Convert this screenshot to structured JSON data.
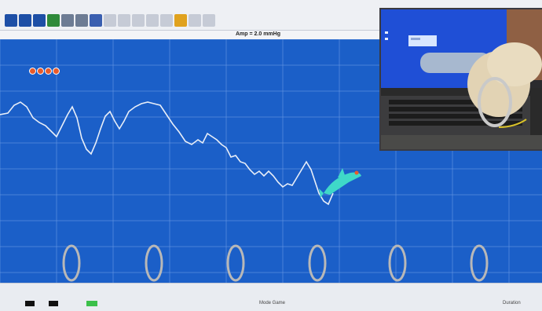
{
  "toolbar": {
    "buttons": [
      {
        "name": "pause-icon",
        "color": "#1d4fa6"
      },
      {
        "name": "split-view-icon",
        "color": "#1d4fa6"
      },
      {
        "name": "compare-icon",
        "color": "#1d4fa6"
      },
      {
        "name": "graph-icon",
        "color": "#2f8a3a"
      },
      {
        "name": "tools-icon",
        "color": "#6d7c94"
      },
      {
        "name": "people-icon",
        "color": "#6d7c94"
      },
      {
        "name": "save-icon",
        "color": "#3a5fb0"
      },
      {
        "name": "disabled-tool-icon",
        "color": "#c6cbd6"
      },
      {
        "name": "disabled-tool-icon",
        "color": "#c6cbd6"
      },
      {
        "name": "disabled-tool-icon",
        "color": "#c6cbd6"
      },
      {
        "name": "disabled-tool-icon",
        "color": "#c6cbd6"
      },
      {
        "name": "disabled-tool-icon",
        "color": "#c6cbd6"
      },
      {
        "name": "settings-icon",
        "color": "#e0a21e"
      },
      {
        "name": "disabled-tool-icon",
        "color": "#c6cbd6"
      },
      {
        "name": "disabled-tool-icon",
        "color": "#c6cbd6"
      }
    ]
  },
  "plot": {
    "header_text": "Amp = 2.0  mmHg",
    "background_color": "#1b5fc8",
    "grid_color": "#6f9ee6",
    "signal_color": "#e8eef8",
    "lives_count": 4,
    "ring_count": 6
  },
  "game": {
    "character_icon": "dolphin-icon",
    "character_color": "#3fd8c8"
  },
  "video_inset": {
    "description_icon": "camera-feed-icon"
  },
  "status": {
    "mode_label": "Mode  Game",
    "right_label": "Duration"
  }
}
